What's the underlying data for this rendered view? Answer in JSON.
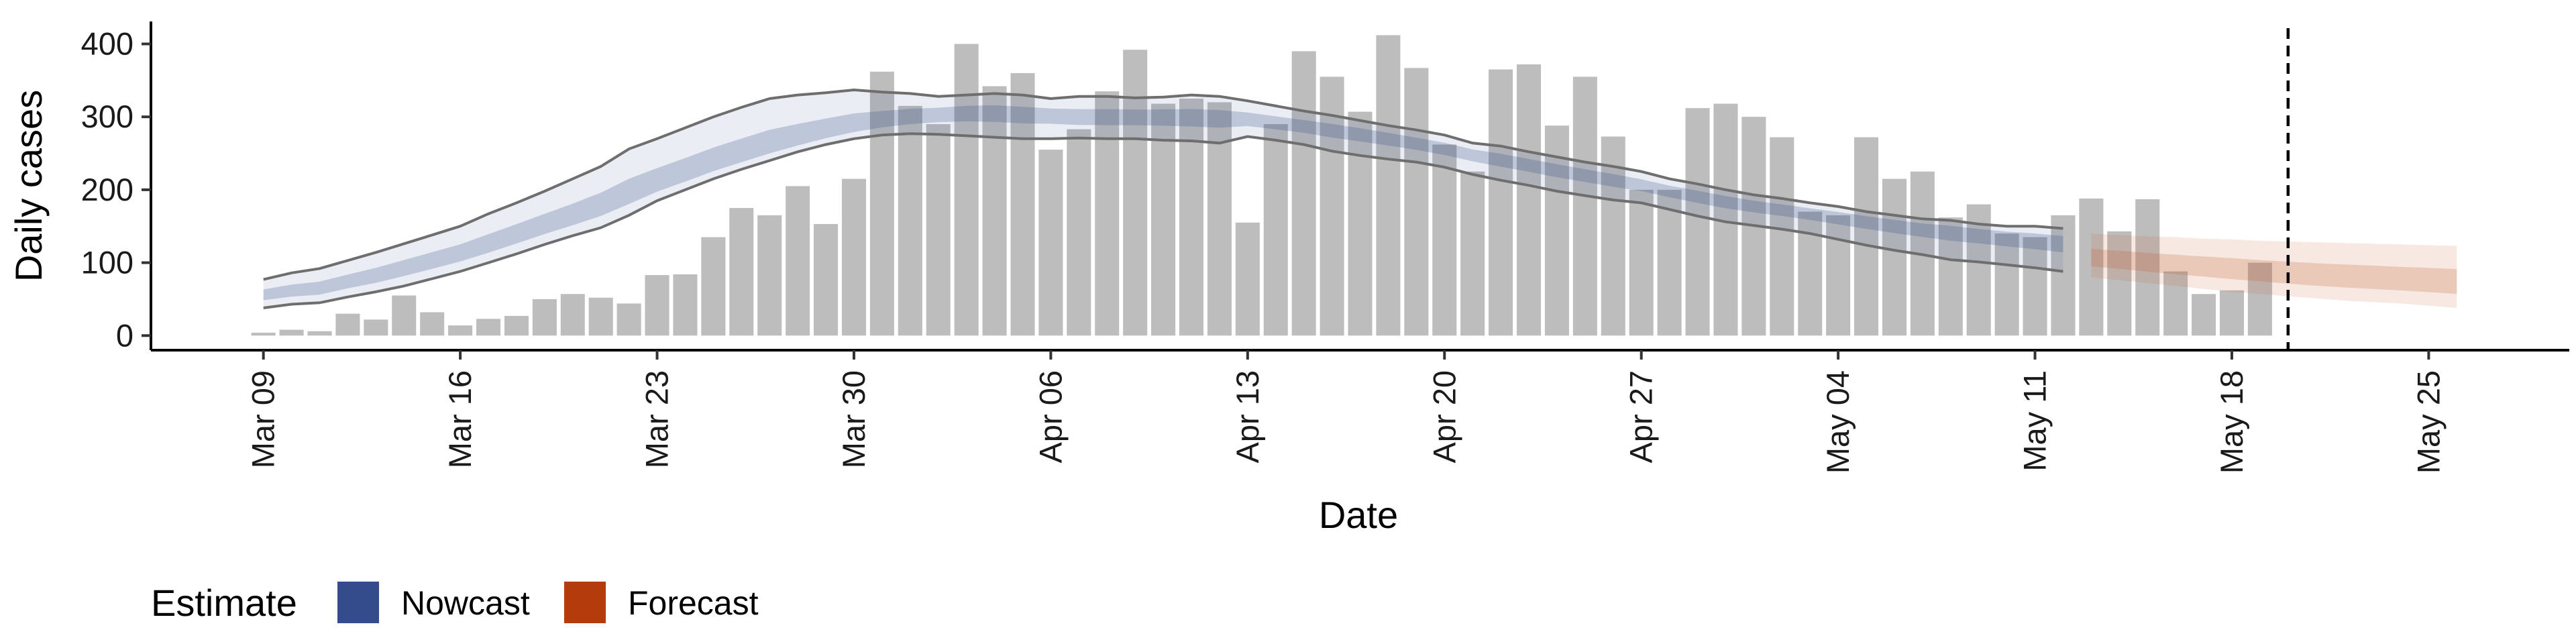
{
  "chart_data": {
    "type": "bar",
    "xlabel": "Date",
    "ylabel": "Daily cases",
    "ylim": [
      -20,
      440
    ],
    "y_ticks": [
      0,
      100,
      200,
      300,
      400
    ],
    "x_ticks": [
      "Mar 09",
      "Mar 16",
      "Mar 23",
      "Mar 30",
      "Apr 06",
      "Apr 13",
      "Apr 20",
      "Apr 27",
      "May 04",
      "May 11",
      "May 18",
      "May 25"
    ],
    "x_range": [
      "2020-03-05",
      "2020-05-30"
    ],
    "data_start_date": "2020-03-09",
    "reported_cases": [
      4,
      8,
      6,
      30,
      22,
      55,
      32,
      14,
      23,
      27,
      50,
      57,
      52,
      44,
      83,
      84,
      135,
      175,
      165,
      205,
      153,
      215,
      362,
      315,
      290,
      400,
      342,
      360,
      255,
      283,
      335,
      392,
      318,
      325,
      320,
      155,
      290,
      390,
      355,
      307,
      412,
      367,
      262,
      225,
      365,
      372,
      288,
      355,
      273,
      200,
      200,
      312,
      318,
      300,
      272,
      170,
      165,
      272,
      215,
      225,
      162,
      180,
      140,
      135,
      165,
      188,
      143,
      187,
      88,
      57,
      62,
      100
    ],
    "estimate_date": "2020-05-20",
    "legend": {
      "title": "Estimate",
      "position": "bottom-left",
      "entries": [
        {
          "label": "Nowcast",
          "color": "#344c8c"
        },
        {
          "label": "Forecast",
          "color": "#b33b0c"
        }
      ]
    },
    "colors": {
      "bars": "#bdbdbd",
      "nowcast": "#344c8c",
      "forecast": "#c45a2e",
      "band_outline": "#6e6e6e"
    },
    "nowcast": {
      "start_date": "2020-03-09",
      "median": [
        55,
        60,
        63,
        72,
        80,
        90,
        100,
        110,
        122,
        135,
        148,
        160,
        174,
        190,
        205,
        218,
        232,
        244,
        256,
        266,
        276,
        285,
        292,
        298,
        303,
        306,
        306,
        304,
        303,
        300,
        300,
        300,
        300,
        299,
        298,
        296,
        292,
        288,
        283,
        278,
        272,
        265,
        258,
        250,
        243,
        236,
        229,
        222,
        215,
        208,
        200,
        193,
        186,
        180,
        175,
        170,
        165,
        160,
        155,
        150,
        146,
        142,
        138,
        134,
        130
      ],
      "outer_lower": [
        38,
        43,
        45,
        53,
        60,
        68,
        78,
        88,
        100,
        112,
        125,
        137,
        148,
        165,
        185,
        200,
        215,
        228,
        240,
        252,
        262,
        270,
        275,
        277,
        276,
        274,
        272,
        270,
        270,
        271,
        270,
        270,
        268,
        267,
        264,
        273,
        268,
        262,
        253,
        247,
        242,
        238,
        231,
        221,
        213,
        206,
        198,
        192,
        186,
        182,
        173,
        164,
        156,
        151,
        146,
        140,
        132,
        124,
        117,
        111,
        104,
        101,
        97,
        93,
        88
      ],
      "outer_upper": [
        77,
        86,
        92,
        103,
        114,
        126,
        138,
        150,
        167,
        182,
        198,
        215,
        232,
        256,
        270,
        285,
        300,
        313,
        325,
        330,
        333,
        337,
        334,
        332,
        328,
        330,
        332,
        330,
        325,
        328,
        328,
        326,
        327,
        330,
        328,
        322,
        315,
        308,
        302,
        295,
        288,
        282,
        275,
        264,
        260,
        252,
        245,
        238,
        232,
        225,
        215,
        208,
        200,
        193,
        188,
        182,
        177,
        170,
        165,
        160,
        158,
        153,
        150,
        150,
        147
      ]
    },
    "forecast": {
      "start_date": "2020-05-13",
      "median": [
        105,
        102,
        98,
        95,
        92,
        89,
        86,
        83,
        80,
        78,
        76,
        74,
        72,
        70
      ],
      "lower": [
        80,
        76,
        72,
        68,
        64,
        60,
        57,
        54,
        51,
        48,
        46,
        44,
        41,
        38
      ],
      "upper": [
        140,
        138,
        136,
        135,
        133,
        132,
        130,
        129,
        128,
        127,
        126,
        125,
        124,
        123
      ]
    }
  }
}
